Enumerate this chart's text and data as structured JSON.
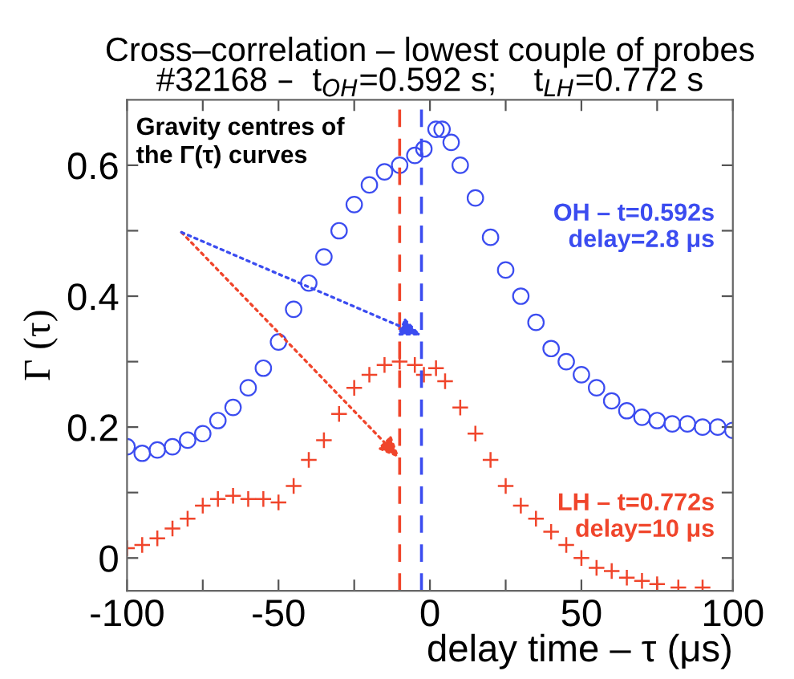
{
  "chart_data": {
    "type": "scatter",
    "title": "Cross–correlation – lowest couple of probes\n#32168 –  t$_{OH}$=0.592 s;    t$_{LH}$=0.772 s",
    "xlabel": "delay time – τ (μs)",
    "ylabel": "Γ (τ)",
    "xlim": [
      -100,
      100
    ],
    "xticks": [
      -100,
      {
        "value": -75,
        "label": null
      },
      -50,
      {
        "value": -25,
        "label": null
      },
      0,
      {
        "value": 25,
        "label": null
      },
      50,
      {
        "value": 75,
        "label": null
      },
      100
    ],
    "ylim": [
      -0.05,
      0.7
    ],
    "yticks": [
      0,
      {
        "value": 0.1,
        "label": null
      },
      0.2,
      {
        "value": 0.3,
        "label": null
      },
      0.4,
      {
        "value": 0.5,
        "label": null
      },
      0.6
    ],
    "grid": false,
    "series": [
      {
        "color": "#3b4cf0",
        "marker": "circle",
        "x": [
          -100,
          -95,
          -90,
          -85,
          -80,
          -75,
          -70,
          -65,
          -60,
          -55,
          -50,
          -45,
          -40,
          -35,
          -30,
          -25,
          -20,
          -15,
          -10,
          -5,
          -2,
          2,
          4,
          7,
          10,
          15,
          20,
          25,
          30,
          35,
          40,
          45,
          50,
          55,
          60,
          65,
          70,
          75,
          80,
          85,
          90,
          95,
          100
        ],
        "values": [
          0.17,
          0.16,
          0.165,
          0.17,
          0.18,
          0.19,
          0.21,
          0.23,
          0.26,
          0.29,
          0.33,
          0.38,
          0.42,
          0.46,
          0.5,
          0.54,
          0.57,
          0.59,
          0.6,
          0.615,
          0.625,
          0.655,
          0.655,
          0.635,
          0.6,
          0.55,
          0.49,
          0.44,
          0.4,
          0.36,
          0.32,
          0.3,
          0.28,
          0.26,
          0.24,
          0.225,
          0.215,
          0.21,
          0.205,
          0.205,
          0.2,
          0.2,
          0.195
        ]
      },
      {
        "color": "#f0452b",
        "marker": "cross",
        "x": [
          -100,
          -95,
          -90,
          -85,
          -80,
          -75,
          -70,
          -65,
          -60,
          -55,
          -50,
          -45,
          -40,
          -35,
          -30,
          -25,
          -20,
          -15,
          -10,
          -5,
          -2,
          2,
          5,
          10,
          15,
          20,
          25,
          30,
          35,
          40,
          45,
          50,
          55,
          60,
          65,
          70,
          75,
          82,
          90
        ],
        "values": [
          0.015,
          0.02,
          0.03,
          0.045,
          0.06,
          0.08,
          0.09,
          0.095,
          0.09,
          0.09,
          0.085,
          0.11,
          0.15,
          0.18,
          0.22,
          0.26,
          0.28,
          0.295,
          0.3,
          0.295,
          0.28,
          0.29,
          0.27,
          0.23,
          0.19,
          0.15,
          0.11,
          0.08,
          0.06,
          0.04,
          0.02,
          0.0,
          -0.015,
          -0.02,
          -0.03,
          -0.035,
          -0.04,
          -0.045,
          -0.045
        ]
      }
    ],
    "ref_lines": [
      {
        "axis": "x",
        "value": -10,
        "color": "#f0452b",
        "line_style": "dashed"
      },
      {
        "axis": "x",
        "value": -2.8,
        "color": "#3b4cf0",
        "line_style": "dashed"
      }
    ],
    "annotations": [
      "Gravity centres of\nthe Γ(τ) curves",
      "LH – t=0.772s\ndelay=10 μs",
      "OH – t=0.592s\ndelay=2.8 μs"
    ]
  }
}
